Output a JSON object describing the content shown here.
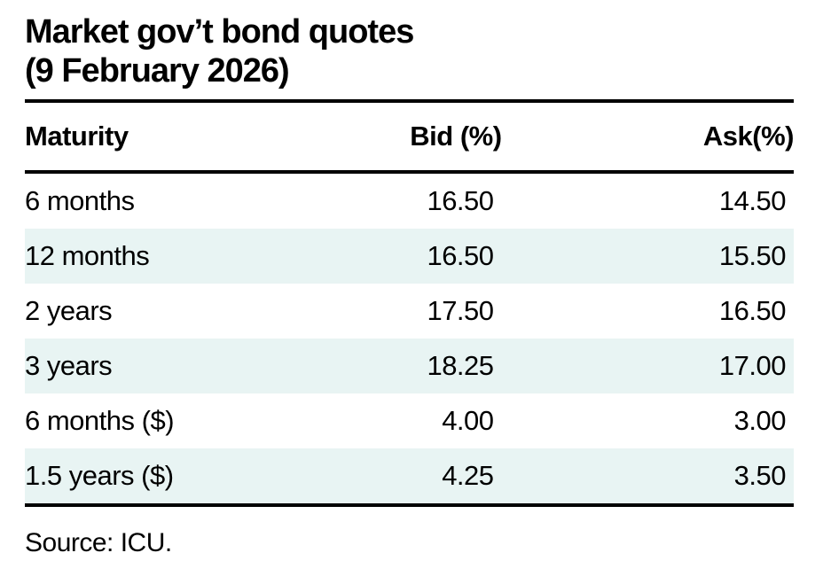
{
  "title": {
    "line1": "Market gov’t bond quotes",
    "line2": "(9 February 2026)"
  },
  "table": {
    "columns": [
      {
        "label": "Maturity"
      },
      {
        "label": "Bid (%)"
      },
      {
        "label": "Ask(%)"
      }
    ],
    "rows": [
      {
        "maturity": "6 months",
        "bid": "16.50",
        "ask": "14.50"
      },
      {
        "maturity": "12 months",
        "bid": "16.50",
        "ask": "15.50"
      },
      {
        "maturity": "2 years",
        "bid": "17.50",
        "ask": "16.50"
      },
      {
        "maturity": "3 years",
        "bid": "18.25",
        "ask": "17.00"
      },
      {
        "maturity": "6 months ($)",
        "bid": "4.00",
        "ask": "3.00"
      },
      {
        "maturity": "1.5 years ($)",
        "bid": "4.25",
        "ask": "3.50"
      }
    ]
  },
  "source": "Source: ICU.",
  "colors": {
    "background": "#ffffff",
    "text": "#000000",
    "rule": "#000000",
    "row_alt": "#e8f4f3"
  },
  "chart_data": {
    "type": "table",
    "title": "Market gov’t bond quotes (9 February 2026)",
    "columns": [
      "Maturity",
      "Bid (%)",
      "Ask(%)"
    ],
    "rows": [
      [
        "6 months",
        16.5,
        14.5
      ],
      [
        "12 months",
        16.5,
        15.5
      ],
      [
        "2 years",
        17.5,
        16.5
      ],
      [
        "3 years",
        18.25,
        17.0
      ],
      [
        "6 months ($)",
        4.0,
        3.0
      ],
      [
        "1.5 years ($)",
        4.25,
        3.5
      ]
    ],
    "row_striping": "alternating white / pale teal starting with white",
    "source": "Source: ICU."
  }
}
